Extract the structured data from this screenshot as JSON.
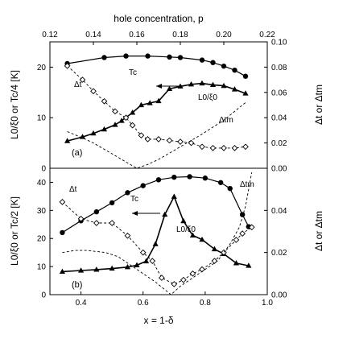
{
  "chart_data": [
    {
      "panel": "(a)",
      "type": "line",
      "top_axis": {
        "label": "hole concentration, p",
        "ticks": [
          0.12,
          0.14,
          0.16,
          0.18,
          0.2,
          0.22
        ],
        "tick_labels": [
          "0.12",
          "0.14",
          "0.16",
          "0.18",
          "0.20",
          "0.22"
        ],
        "xlim": [
          0.12,
          0.22
        ]
      },
      "xlim": [
        0.3,
        1.0
      ],
      "ylabel_left": "L0/ξ0 or Tc/4 [K]",
      "ylim_left": [
        0,
        25
      ],
      "yticks_left": [
        0,
        10,
        20
      ],
      "ylabel_right": "Δt or Δtm",
      "ylim_right": [
        0,
        0.1
      ],
      "yticks_right": [
        0.0,
        0.02,
        0.04,
        0.06,
        0.08,
        0.1
      ],
      "ytick_labels_right": [
        "0.00",
        "0.02",
        "0.04",
        "0.06",
        "0.08",
        "0.10"
      ],
      "annotations": [
        "Tc",
        "Δt",
        "L0/ξ0",
        "Δtm",
        "(a)"
      ],
      "series": [
        {
          "axis": "left",
          "style": "solid",
          "marker": "filled-circle",
          "points": [
            [
              0.128,
              20.7
            ],
            [
              0.145,
              21.9
            ],
            [
              0.155,
              22.2
            ],
            [
              0.165,
              22.2
            ],
            [
              0.175,
              22.0
            ],
            [
              0.18,
              21.9
            ],
            [
              0.19,
              21.4
            ],
            [
              0.195,
              20.9
            ],
            [
              0.2,
              20.2
            ],
            [
              0.205,
              19.4
            ],
            [
              0.21,
              18.2
            ]
          ]
        },
        {
          "axis": "left",
          "style": "solid-thick",
          "marker": "filled-triangle",
          "points": [
            [
              0.128,
              5.4
            ],
            [
              0.135,
              6.2
            ],
            [
              0.14,
              6.9
            ],
            [
              0.145,
              7.7
            ],
            [
              0.15,
              8.6
            ],
            [
              0.153,
              9.4
            ],
            [
              0.158,
              11.0
            ],
            [
              0.162,
              12.5
            ],
            [
              0.166,
              12.9
            ],
            [
              0.17,
              13.3
            ],
            [
              0.175,
              15.7
            ],
            [
              0.18,
              16.2
            ],
            [
              0.185,
              16.6
            ],
            [
              0.19,
              16.8
            ],
            [
              0.195,
              16.5
            ],
            [
              0.2,
              16.3
            ],
            [
              0.205,
              15.6
            ],
            [
              0.21,
              14.8
            ]
          ]
        },
        {
          "axis": "right",
          "style": "dashed",
          "marker": "open-diamond",
          "points": [
            [
              0.128,
              0.081
            ],
            [
              0.135,
              0.07
            ],
            [
              0.14,
              0.061
            ],
            [
              0.145,
              0.053
            ],
            [
              0.15,
              0.045
            ],
            [
              0.155,
              0.04
            ],
            [
              0.158,
              0.034
            ],
            [
              0.162,
              0.026
            ],
            [
              0.165,
              0.023
            ],
            [
              0.17,
              0.023
            ],
            [
              0.175,
              0.022
            ],
            [
              0.18,
              0.021
            ],
            [
              0.185,
              0.02
            ],
            [
              0.19,
              0.017
            ],
            [
              0.195,
              0.016
            ],
            [
              0.2,
              0.016
            ],
            [
              0.205,
              0.016
            ],
            [
              0.21,
              0.017
            ]
          ]
        },
        {
          "axis": "right",
          "style": "dashed",
          "marker": "none",
          "points": [
            [
              0.128,
              0.029
            ],
            [
              0.135,
              0.024
            ],
            [
              0.14,
              0.02
            ],
            [
              0.145,
              0.015
            ],
            [
              0.15,
              0.01
            ],
            [
              0.155,
              0.005
            ],
            [
              0.16,
              0.0
            ],
            [
              0.165,
              0.003
            ],
            [
              0.17,
              0.007
            ],
            [
              0.175,
              0.012
            ],
            [
              0.18,
              0.017
            ],
            [
              0.19,
              0.027
            ],
            [
              0.2,
              0.038
            ],
            [
              0.21,
              0.052
            ]
          ]
        }
      ]
    },
    {
      "panel": "(b)",
      "type": "line",
      "xlabel": "x = 1-δ",
      "xlim": [
        0.3,
        1.0
      ],
      "xticks": [
        0.4,
        0.6,
        0.8,
        1.0
      ],
      "xtick_labels": [
        "0.4",
        "0.6",
        "0.8",
        "1.0"
      ],
      "ylabel_left": "L0/ξ0 or Tc/2 [K]",
      "ylim_left": [
        0,
        45
      ],
      "yticks_left": [
        0,
        10,
        20,
        30,
        40
      ],
      "ylabel_right": "Δt or Δtm",
      "ylim_right": [
        0,
        0.06
      ],
      "yticks_right": [
        0.0,
        0.02,
        0.04
      ],
      "ytick_labels_right": [
        "0.00",
        "0.02",
        "0.04"
      ],
      "annotations": [
        "Δt",
        "Tc",
        "Δtm",
        "L0/ξ0",
        "(b)"
      ],
      "series": [
        {
          "axis": "left",
          "style": "solid",
          "marker": "filled-circle",
          "points": [
            [
              0.34,
              22.1
            ],
            [
              0.4,
              26.3
            ],
            [
              0.45,
              29.5
            ],
            [
              0.5,
              32.7
            ],
            [
              0.55,
              36.3
            ],
            [
              0.6,
              38.8
            ],
            [
              0.65,
              40.9
            ],
            [
              0.7,
              41.8
            ],
            [
              0.75,
              42.0
            ],
            [
              0.8,
              41.5
            ],
            [
              0.85,
              39.9
            ],
            [
              0.88,
              37.8
            ],
            [
              0.92,
              28.5
            ],
            [
              0.94,
              24.2
            ]
          ]
        },
        {
          "axis": "left",
          "style": "solid-thick",
          "marker": "filled-triangle",
          "points": [
            [
              0.34,
              8.2
            ],
            [
              0.4,
              8.6
            ],
            [
              0.45,
              8.9
            ],
            [
              0.5,
              9.3
            ],
            [
              0.55,
              9.8
            ],
            [
              0.58,
              10.5
            ],
            [
              0.61,
              11.9
            ],
            [
              0.64,
              18.0
            ],
            [
              0.67,
              28.5
            ],
            [
              0.7,
              34.9
            ],
            [
              0.73,
              26.2
            ],
            [
              0.76,
              21.1
            ],
            [
              0.79,
              19.6
            ],
            [
              0.83,
              16.2
            ],
            [
              0.86,
              14.5
            ],
            [
              0.9,
              11.2
            ],
            [
              0.94,
              10.3
            ]
          ]
        },
        {
          "axis": "right",
          "style": "dashed",
          "marker": "open-diamond",
          "points": [
            [
              0.34,
              0.044
            ],
            [
              0.4,
              0.036
            ],
            [
              0.45,
              0.034
            ],
            [
              0.5,
              0.034
            ],
            [
              0.55,
              0.028
            ],
            [
              0.6,
              0.02
            ],
            [
              0.63,
              0.016
            ],
            [
              0.66,
              0.008
            ],
            [
              0.7,
              0.005
            ],
            [
              0.73,
              0.007
            ],
            [
              0.76,
              0.01
            ],
            [
              0.79,
              0.012
            ],
            [
              0.83,
              0.016
            ],
            [
              0.86,
              0.02
            ],
            [
              0.9,
              0.026
            ],
            [
              0.92,
              0.029
            ],
            [
              0.95,
              0.032
            ]
          ]
        },
        {
          "axis": "right",
          "style": "dashed",
          "marker": "none",
          "points": [
            [
              0.34,
              0.02
            ],
            [
              0.38,
              0.021
            ],
            [
              0.42,
              0.021
            ],
            [
              0.48,
              0.02
            ],
            [
              0.52,
              0.018
            ],
            [
              0.58,
              0.012
            ],
            [
              0.64,
              0.006
            ],
            [
              0.69,
              0.0
            ],
            [
              0.72,
              0.004
            ],
            [
              0.76,
              0.008
            ],
            [
              0.8,
              0.012
            ],
            [
              0.84,
              0.016
            ],
            [
              0.88,
              0.024
            ],
            [
              0.91,
              0.032
            ],
            [
              0.93,
              0.042
            ],
            [
              0.95,
              0.058
            ]
          ]
        }
      ]
    }
  ]
}
